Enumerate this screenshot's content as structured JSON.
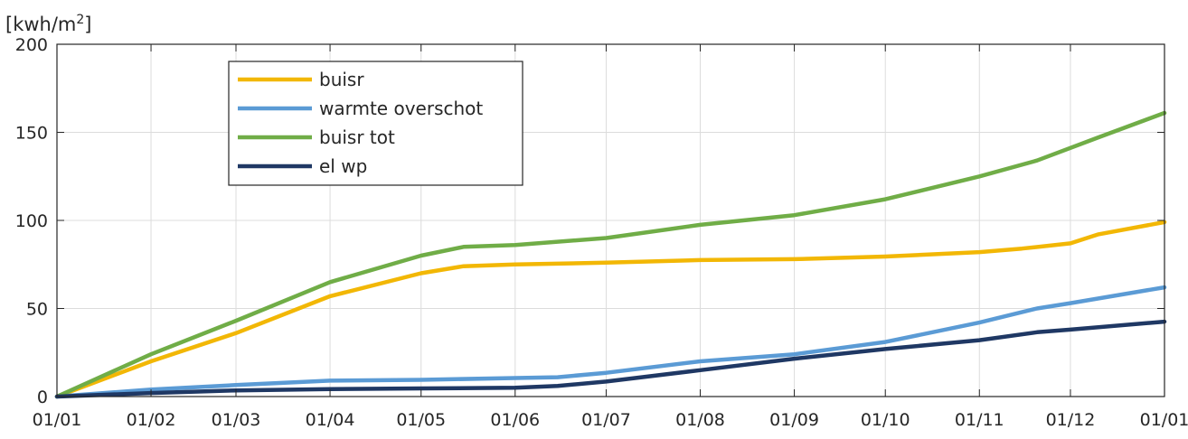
{
  "chart_data": {
    "type": "line",
    "ylabel": "[kwh/m²]",
    "ylabel_base": "[kwh/m",
    "ylabel_sup": "2",
    "ylabel_close": "]",
    "ylim": [
      0,
      200
    ],
    "yticks": [
      0,
      50,
      100,
      150,
      200
    ],
    "xlim": [
      "01/01",
      "01/01"
    ],
    "xticks": [
      "01/01",
      "01/02",
      "01/03",
      "01/04",
      "01/05",
      "01/06",
      "01/07",
      "01/08",
      "01/09",
      "01/10",
      "01/11",
      "01/12",
      "01/01"
    ],
    "grid": true,
    "legend_position": "upper-left",
    "series": [
      {
        "name": "buisr",
        "color": "#F2B705",
        "x": [
          "01/01",
          "01/02",
          "01/03",
          "01/04",
          "01/05",
          "15/05",
          "01/06",
          "01/07",
          "01/08",
          "01/09",
          "01/10",
          "01/11",
          "15/11",
          "01/12",
          "10/12",
          "01/01"
        ],
        "values": [
          0,
          20,
          36,
          57,
          70,
          74,
          75,
          76,
          77.5,
          78,
          79.5,
          82,
          84,
          87,
          92,
          99
        ]
      },
      {
        "name": "warmte overschot",
        "color": "#5B9BD5",
        "x": [
          "01/01",
          "01/02",
          "01/03",
          "01/04",
          "01/05",
          "01/06",
          "15/06",
          "01/07",
          "01/08",
          "01/09",
          "01/10",
          "01/11",
          "20/11",
          "01/12",
          "01/01"
        ],
        "values": [
          0,
          4,
          6.5,
          9,
          9.5,
          10.5,
          11,
          13.5,
          20,
          24,
          31,
          42,
          50,
          53,
          62
        ]
      },
      {
        "name": "buisr tot",
        "color": "#70AD47",
        "x": [
          "01/01",
          "01/02",
          "01/03",
          "01/04",
          "01/05",
          "15/05",
          "01/06",
          "01/07",
          "01/08",
          "01/09",
          "01/10",
          "01/11",
          "20/11",
          "10/12",
          "01/01"
        ],
        "values": [
          0,
          24,
          43,
          65,
          80,
          85,
          86,
          90,
          97.5,
          103,
          112,
          125,
          134,
          147,
          161
        ]
      },
      {
        "name": "el wp",
        "color": "#1F3864",
        "x": [
          "01/01",
          "01/02",
          "01/03",
          "01/04",
          "01/05",
          "01/06",
          "15/06",
          "01/07",
          "01/08",
          "01/09",
          "01/10",
          "01/11",
          "20/11",
          "01/12",
          "01/01"
        ],
        "values": [
          0,
          2,
          3.5,
          4.2,
          4.6,
          5,
          6,
          8.5,
          15,
          21.5,
          27,
          32,
          36.5,
          38,
          42.5
        ]
      }
    ]
  }
}
